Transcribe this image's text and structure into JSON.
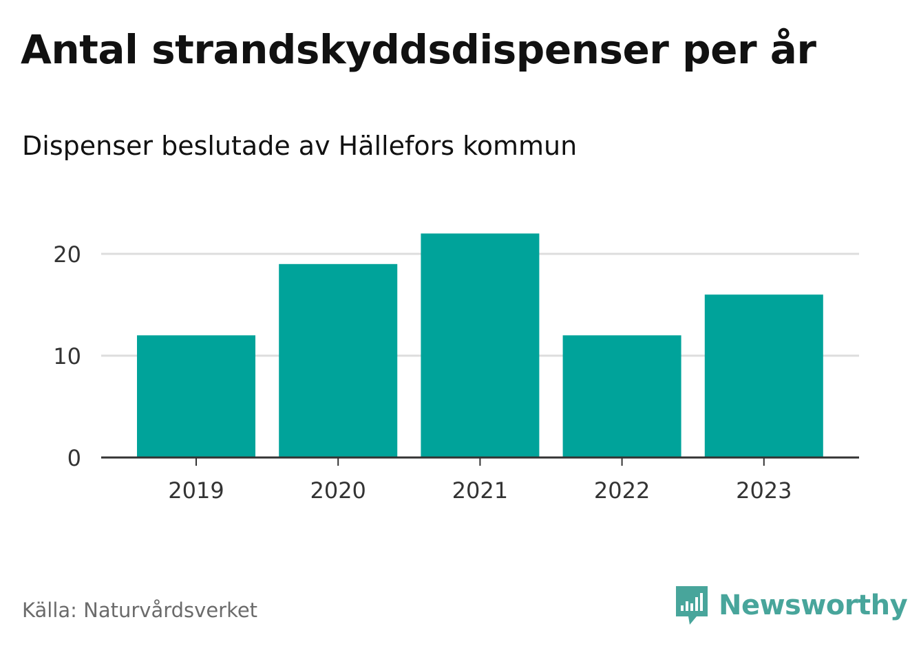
{
  "title": "Antal strandskyddsdispenser per år",
  "subtitle": "Dispenser beslutade av Hällefors kommun",
  "source": "Källa: Naturvårdsverket",
  "brand": {
    "name": "Newsworthy",
    "icon": "newsworthy-logo-icon",
    "color": "#48a59b"
  },
  "colors": {
    "bar": "#00a39a",
    "grid": "#dddddd",
    "axis": "#333333"
  },
  "chart_data": {
    "type": "bar",
    "title": "Antal strandskyddsdispenser per år",
    "subtitle": "Dispenser beslutade av Hällefors kommun",
    "categories": [
      "2019",
      "2020",
      "2021",
      "2022",
      "2023"
    ],
    "values": [
      12,
      19,
      22,
      12,
      16
    ],
    "xlabel": "",
    "ylabel": "",
    "ylim": [
      0,
      24
    ],
    "yticks": [
      0,
      10,
      20
    ],
    "grid": true,
    "legend": "none"
  }
}
